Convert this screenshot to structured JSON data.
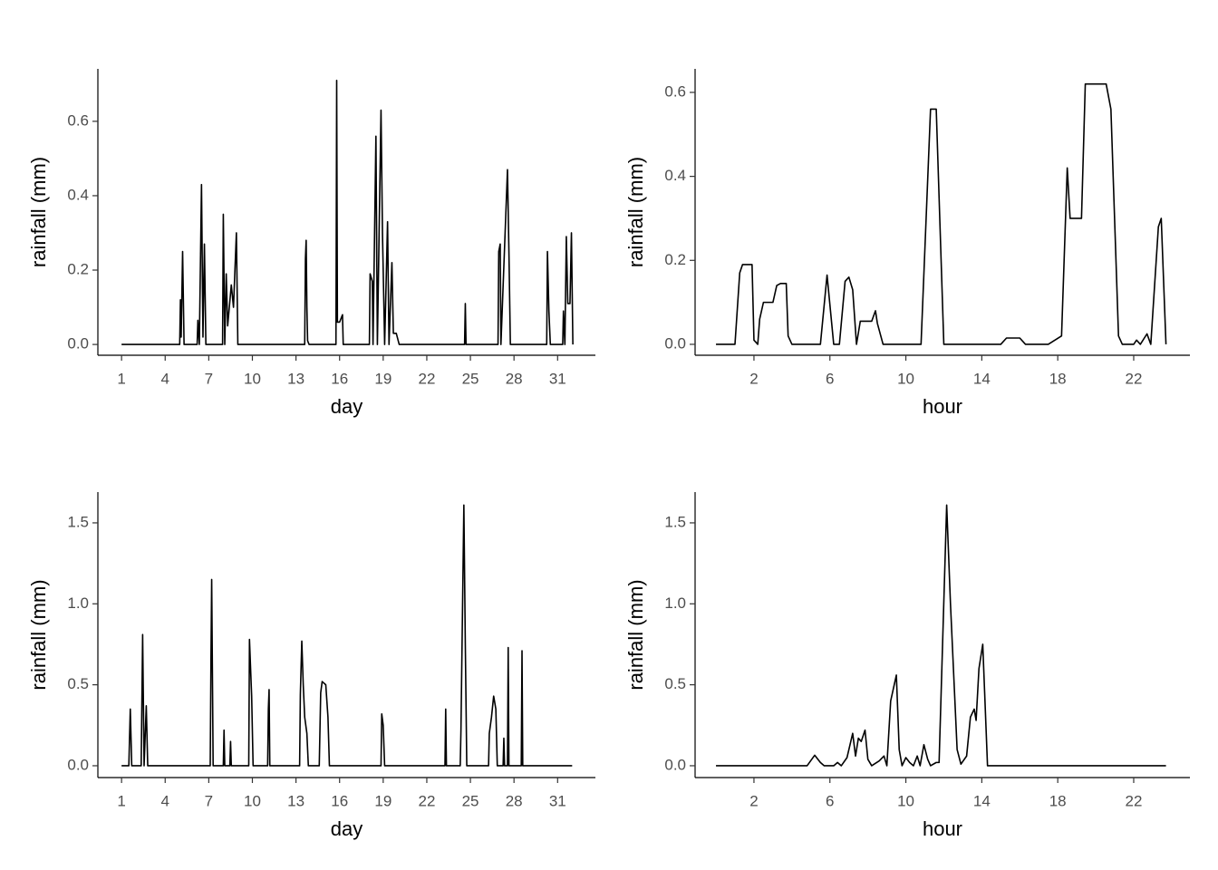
{
  "chart_data": [
    {
      "type": "line",
      "x_label": "day",
      "y_label": "rainfall (mm)",
      "color": "#000000",
      "x": [
        1,
        5.0,
        5.05,
        5.1,
        5.2,
        5.3,
        6.2,
        6.25,
        6.35,
        6.5,
        6.6,
        6.7,
        6.8,
        7.95,
        8.0,
        8.1,
        8.2,
        8.3,
        8.55,
        8.7,
        8.9,
        9.0,
        13.6,
        13.65,
        13.7,
        13.75,
        13.8,
        13.9,
        15.75,
        15.8,
        15.85,
        16.0,
        16.2,
        16.25,
        18.05,
        18.1,
        18.25,
        18.3,
        18.5,
        18.6,
        18.85,
        18.95,
        19.1,
        19.3,
        19.4,
        19.6,
        19.7,
        19.9,
        20.1,
        24.6,
        24.65,
        24.7,
        26.9,
        26.95,
        27.05,
        27.1,
        27.55,
        27.65,
        27.75,
        30.25,
        30.3,
        30.4,
        30.5,
        31.35,
        31.4,
        31.5,
        31.6,
        31.7,
        31.85,
        31.95,
        32.05
      ],
      "values": [
        0,
        0,
        0.12,
        0.02,
        0.25,
        0,
        0,
        0.065,
        0,
        0.43,
        0.02,
        0.27,
        0,
        0,
        0.35,
        0,
        0.19,
        0.05,
        0.16,
        0.1,
        0.3,
        0,
        0,
        0.23,
        0.28,
        0.1,
        0.01,
        0,
        0,
        0.71,
        0.06,
        0.06,
        0.08,
        0,
        0,
        0.19,
        0.17,
        0,
        0.56,
        0,
        0.63,
        0.3,
        0,
        0.33,
        0,
        0.22,
        0.03,
        0.03,
        0,
        0,
        0.11,
        0,
        0,
        0.25,
        0.27,
        0,
        0.47,
        0.25,
        0,
        0,
        0.25,
        0.09,
        0,
        0,
        0.09,
        0,
        0.29,
        0.11,
        0.11,
        0.3,
        0
      ],
      "xlim": [
        -0.63,
        33.6
      ],
      "ylim": [
        -0.029,
        0.741
      ],
      "xticks": [
        1,
        4,
        7,
        10,
        13,
        16,
        19,
        22,
        25,
        28,
        31
      ],
      "yticks": [
        {
          "value": 0,
          "label": "0.0"
        },
        {
          "value": 0.2,
          "label": "0.2"
        },
        {
          "value": 0.4,
          "label": "0.4"
        },
        {
          "value": 0.6,
          "label": "0.6"
        }
      ]
    },
    {
      "type": "line",
      "x_label": "hour",
      "y_label": "rainfall (mm)",
      "color": "#000000",
      "x": [
        0,
        1.0,
        1.25,
        1.4,
        1.9,
        2.0,
        2.2,
        2.3,
        2.5,
        3.0,
        3.2,
        3.4,
        3.7,
        3.8,
        4.0,
        5.5,
        5.85,
        6.2,
        6.5,
        6.8,
        7.0,
        7.2,
        7.4,
        7.6,
        8.2,
        8.4,
        8.5,
        8.8,
        10.8,
        11.3,
        11.6,
        12.0,
        15.0,
        15.3,
        16.0,
        16.3,
        17.5,
        18.2,
        18.5,
        18.65,
        19.25,
        19.45,
        20.55,
        20.8,
        21.2,
        21.4,
        22.0,
        22.15,
        22.35,
        22.7,
        22.9,
        23.3,
        23.45,
        23.7
      ],
      "values": [
        0,
        0,
        0.17,
        0.19,
        0.19,
        0.01,
        0,
        0.06,
        0.1,
        0.1,
        0.14,
        0.145,
        0.145,
        0.02,
        0,
        0,
        0.165,
        0,
        0,
        0.15,
        0.16,
        0.13,
        0,
        0.055,
        0.055,
        0.08,
        0.05,
        0,
        0,
        0.56,
        0.56,
        0,
        0,
        0.015,
        0.015,
        0,
        0,
        0.02,
        0.42,
        0.3,
        0.3,
        0.62,
        0.62,
        0.56,
        0.02,
        0,
        0,
        0.01,
        0,
        0.025,
        0,
        0.28,
        0.3,
        0
      ],
      "xlim": [
        -1.1,
        24.96
      ],
      "ylim": [
        -0.026,
        0.656
      ],
      "xticks": [
        2,
        6,
        10,
        14,
        18,
        22
      ],
      "yticks": [
        {
          "value": 0,
          "label": "0.0"
        },
        {
          "value": 0.2,
          "label": "0.2"
        },
        {
          "value": 0.4,
          "label": "0.4"
        },
        {
          "value": 0.6,
          "label": "0.6"
        }
      ]
    },
    {
      "type": "line",
      "x_label": "day",
      "y_label": "rainfall (mm)",
      "color": "#000000",
      "x": [
        1,
        1.5,
        1.6,
        1.7,
        2.35,
        2.45,
        2.55,
        2.7,
        2.8,
        7.1,
        7.15,
        7.2,
        7.3,
        8.0,
        8.05,
        8.1,
        8.45,
        8.5,
        8.55,
        9.75,
        9.8,
        9.95,
        10.05,
        11.05,
        11.1,
        11.15,
        11.2,
        13.25,
        13.3,
        13.4,
        13.5,
        13.6,
        13.75,
        13.85,
        13.95,
        14.6,
        14.7,
        14.8,
        15.05,
        15.2,
        15.3,
        18.85,
        18.9,
        19.0,
        19.1,
        23.25,
        23.3,
        23.35,
        24.3,
        24.35,
        24.55,
        24.65,
        24.75,
        26.25,
        26.3,
        26.45,
        26.6,
        26.75,
        26.85,
        27.25,
        27.3,
        27.35,
        27.55,
        27.6,
        27.65,
        28.5,
        28.55,
        28.6,
        32.0
      ],
      "values": [
        0,
        0,
        0.35,
        0,
        0,
        0.81,
        0,
        0.37,
        0,
        0,
        0.65,
        1.15,
        0,
        0,
        0.22,
        0,
        0,
        0.15,
        0,
        0,
        0.78,
        0.43,
        0,
        0,
        0.35,
        0.47,
        0,
        0,
        0.44,
        0.77,
        0.5,
        0.3,
        0.2,
        0,
        0,
        0,
        0.45,
        0.52,
        0.5,
        0.3,
        0,
        0,
        0.32,
        0.25,
        0,
        0,
        0.35,
        0,
        0,
        0.22,
        1.61,
        0.75,
        0,
        0,
        0.2,
        0.3,
        0.43,
        0.35,
        0,
        0,
        0.17,
        0,
        0,
        0.73,
        0,
        0,
        0.71,
        0,
        0
      ],
      "xlim": [
        -0.63,
        33.6
      ],
      "ylim": [
        -0.073,
        1.69
      ],
      "xticks": [
        1,
        4,
        7,
        10,
        13,
        16,
        19,
        22,
        25,
        28,
        31
      ],
      "yticks": [
        {
          "value": 0,
          "label": "0.0"
        },
        {
          "value": 0.5,
          "label": "0.5"
        },
        {
          "value": 1,
          "label": "1.0"
        },
        {
          "value": 1.5,
          "label": "1.5"
        }
      ]
    },
    {
      "type": "line",
      "x_label": "hour",
      "y_label": "rainfall (mm)",
      "color": "#000000",
      "x": [
        0,
        4.8,
        5.2,
        5.5,
        5.7,
        6.2,
        6.4,
        6.6,
        6.9,
        7.2,
        7.35,
        7.5,
        7.65,
        7.85,
        8.0,
        8.2,
        8.6,
        8.85,
        9.0,
        9.2,
        9.5,
        9.65,
        9.8,
        10.0,
        10.2,
        10.4,
        10.6,
        10.75,
        10.95,
        11.15,
        11.3,
        11.6,
        11.75,
        12.15,
        12.35,
        12.7,
        12.9,
        13.2,
        13.4,
        13.6,
        13.7,
        13.85,
        14.05,
        14.3,
        23.7
      ],
      "values": [
        0,
        0,
        0.065,
        0.02,
        0,
        0,
        0.02,
        0,
        0.05,
        0.2,
        0.06,
        0.17,
        0.15,
        0.22,
        0.04,
        0,
        0.03,
        0.06,
        0,
        0.4,
        0.56,
        0.1,
        0,
        0.05,
        0.02,
        0,
        0.06,
        0,
        0.13,
        0.04,
        0,
        0.02,
        0.02,
        1.61,
        1.0,
        0.1,
        0.01,
        0.06,
        0.3,
        0.35,
        0.28,
        0.6,
        0.75,
        0,
        0
      ],
      "xlim": [
        -1.1,
        24.96
      ],
      "ylim": [
        -0.073,
        1.69
      ],
      "xticks": [
        2,
        6,
        10,
        14,
        18,
        22
      ],
      "yticks": [
        {
          "value": 0,
          "label": "0.0"
        },
        {
          "value": 0.5,
          "label": "0.5"
        },
        {
          "value": 1,
          "label": "1.0"
        },
        {
          "value": 1.5,
          "label": "1.5"
        }
      ]
    }
  ]
}
